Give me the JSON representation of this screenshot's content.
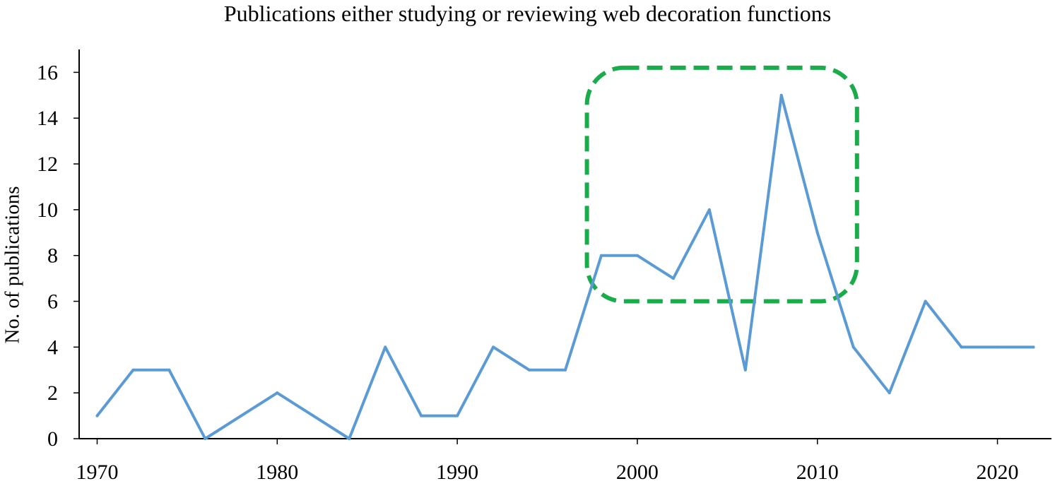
{
  "chart_data": {
    "type": "line",
    "title": "Publications either studying or reviewing web decoration functions",
    "xlabel": "",
    "ylabel": "No. of publications",
    "xlim": [
      1969,
      2023
    ],
    "ylim": [
      0,
      17
    ],
    "x_ticks": [
      1970,
      1980,
      1990,
      2000,
      2010,
      2020
    ],
    "y_ticks": [
      0,
      2,
      4,
      6,
      8,
      10,
      12,
      14,
      16
    ],
    "grid": false,
    "legend": "none",
    "series": [
      {
        "color": "#5b9bd5",
        "x": [
          1970,
          1972,
          1974,
          1976,
          1978,
          1980,
          1982,
          1984,
          1986,
          1988,
          1990,
          1992,
          1994,
          1996,
          1998,
          2000,
          2002,
          2004,
          2006,
          2008,
          2010,
          2012,
          2014,
          2016,
          2018,
          2020,
          2022
        ],
        "y": [
          1,
          3,
          3,
          0,
          1,
          2,
          1,
          0,
          4,
          1,
          1,
          4,
          3,
          3,
          8,
          8,
          7,
          10,
          3,
          15,
          9,
          4,
          2,
          6,
          4,
          4,
          4
        ]
      }
    ],
    "annotations": [
      {
        "shape": "dashed-rounded-rectangle",
        "color": "#1aab4b",
        "x_range": [
          1997.2,
          2012.2
        ],
        "y_range": [
          6,
          16.2
        ]
      }
    ]
  }
}
